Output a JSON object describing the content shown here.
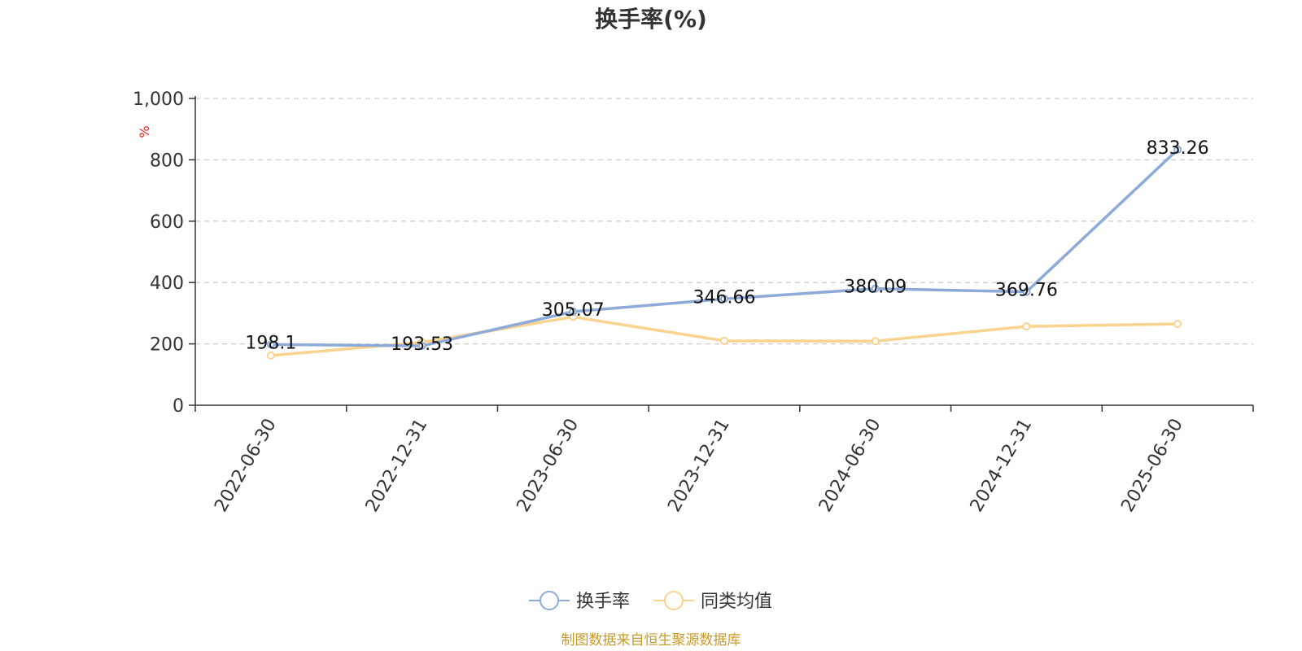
{
  "chart_data": {
    "type": "line",
    "title": "换手率(%)",
    "unit_label": "%",
    "categories": [
      "2022-06-30",
      "2022-12-31",
      "2023-06-30",
      "2023-12-31",
      "2024-06-30",
      "2024-12-31",
      "2025-06-30"
    ],
    "yticks": [
      "0",
      "200",
      "400",
      "600",
      "800",
      "1,000"
    ],
    "ylim": [
      0,
      1000
    ],
    "grid": true,
    "legend_position": "bottom-center",
    "series": [
      {
        "name": "换手率",
        "color": "#8eaad8",
        "values": [
          198.1,
          193.53,
          305.07,
          346.66,
          380.09,
          369.76,
          833.26
        ],
        "labels": [
          "198.1",
          "193.53",
          "305.07",
          "346.66",
          "380.09",
          "369.76",
          "833.26"
        ]
      },
      {
        "name": "同类均值",
        "color": "#fad38f",
        "values": [
          162,
          205,
          288,
          210,
          209,
          257,
          265
        ]
      }
    ],
    "source": "制图数据来自恒生聚源数据库"
  }
}
